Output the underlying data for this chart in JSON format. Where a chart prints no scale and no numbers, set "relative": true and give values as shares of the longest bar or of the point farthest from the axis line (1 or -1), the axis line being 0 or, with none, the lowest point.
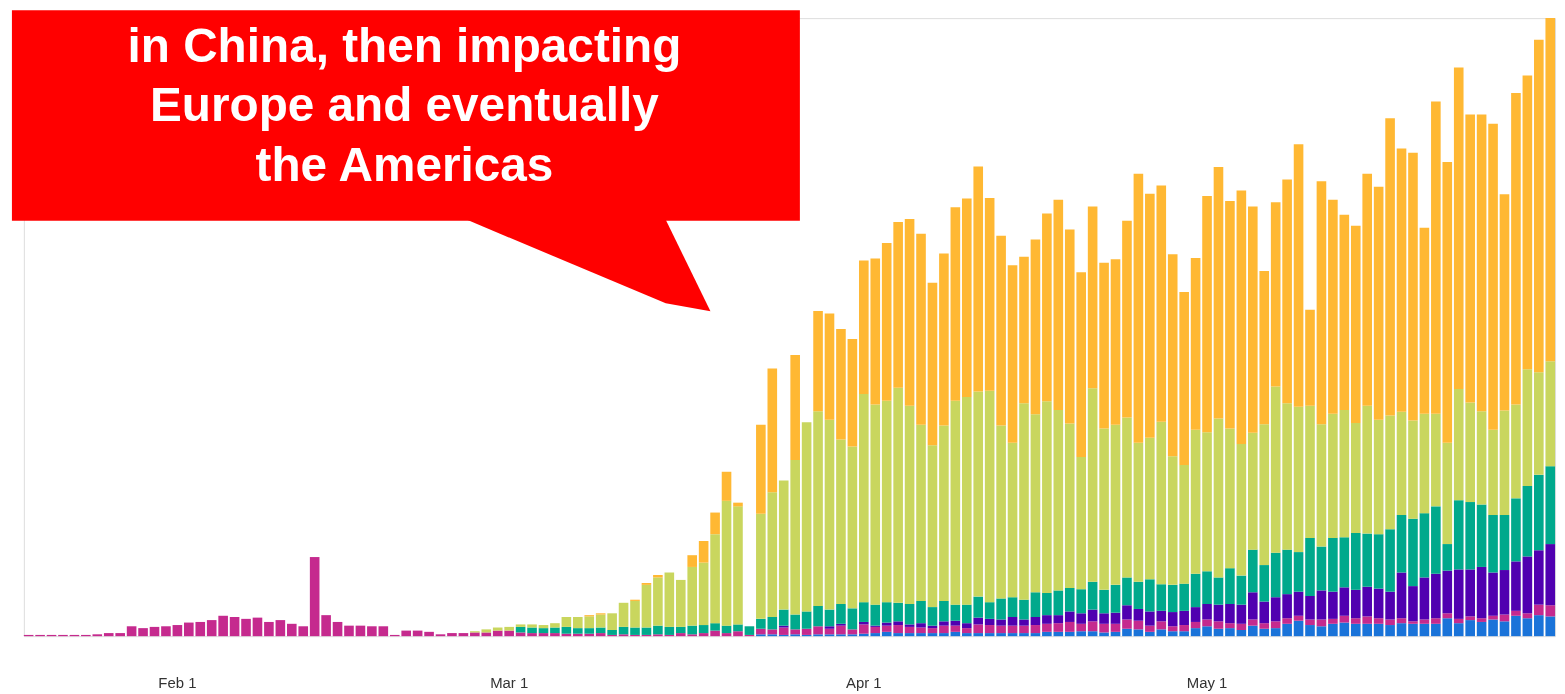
{
  "chart_data": {
    "type": "bar",
    "stacked": true,
    "relative": true,
    "categories": [
      null,
      null,
      null,
      null,
      null,
      null,
      null,
      null,
      null,
      null,
      null,
      null,
      null,
      "Feb 1",
      null,
      null,
      null,
      null,
      null,
      null,
      null,
      null,
      null,
      null,
      null,
      null,
      null,
      null,
      null,
      null,
      null,
      null,
      null,
      null,
      null,
      null,
      null,
      null,
      null,
      null,
      null,
      null,
      "Mar 1",
      null,
      null,
      null,
      null,
      null,
      null,
      null,
      null,
      null,
      null,
      null,
      null,
      null,
      null,
      null,
      null,
      null,
      null,
      null,
      null,
      null,
      null,
      null,
      null,
      null,
      null,
      null,
      null,
      null,
      null,
      "Apr 1",
      null,
      null,
      null,
      null,
      null,
      null,
      null,
      null,
      null,
      null,
      null,
      null,
      null,
      null,
      null,
      null,
      null,
      null,
      null,
      null,
      null,
      null,
      null,
      null,
      null,
      null,
      null,
      null,
      null,
      "May 1",
      null,
      null,
      null,
      null,
      null,
      null,
      null,
      null,
      null,
      null,
      null,
      null,
      null,
      null,
      null,
      null,
      null,
      null,
      null,
      null,
      null,
      null,
      null,
      null,
      null,
      null,
      null,
      null,
      null,
      null
    ],
    "series": [
      {
        "color": "#1a73d9",
        "values": [
          null,
          null,
          null,
          null,
          null,
          null,
          null,
          null,
          null,
          null,
          null,
          null,
          null,
          null,
          null,
          null,
          null,
          null,
          null,
          null,
          null,
          null,
          null,
          null,
          null,
          null,
          null,
          null,
          null,
          null,
          null,
          null,
          null,
          null,
          null,
          null,
          null,
          null,
          null,
          null,
          null,
          null,
          null,
          null,
          null,
          null,
          null,
          null,
          null,
          null,
          null,
          null,
          null,
          null,
          null,
          null,
          null,
          null,
          null,
          null,
          null,
          null,
          null,
          null,
          0.003,
          0.003,
          0.002,
          0.003,
          0.002,
          0.003,
          0.003,
          0.003,
          0.003,
          0.004,
          0.005,
          0.007,
          0.005,
          0.005,
          0.005,
          0.005,
          0.005,
          0.007,
          0.005,
          0.005,
          0.005,
          0.005,
          0.005,
          0.005,
          0.005,
          0.007,
          0.007,
          0.007,
          0.008,
          0.008,
          0.006,
          0.007,
          0.012,
          0.011,
          0.007,
          0.011,
          0.008,
          0.008,
          0.013,
          0.016,
          0.012,
          0.013,
          0.01,
          0.017,
          0.012,
          0.013,
          0.02,
          0.025,
          0.018,
          0.016,
          0.02,
          0.022,
          0.02,
          0.02,
          0.02,
          0.018,
          0.021,
          0.02,
          0.02,
          0.02,
          0.029,
          0.021,
          0.026,
          0.023,
          0.027,
          0.024,
          0.033,
          0.029,
          0.034,
          0.032
        ]
      },
      {
        "color": "#c52a8e",
        "values": [
          0.002,
          0.002,
          0.002,
          0.002,
          0.002,
          0.002,
          0.003,
          0.005,
          0.005,
          0.016,
          0.013,
          0.015,
          0.016,
          0.018,
          0.022,
          0.023,
          0.026,
          0.033,
          0.031,
          0.028,
          0.03,
          0.023,
          0.026,
          0.02,
          0.016,
          0.128,
          0.034,
          0.023,
          0.017,
          0.017,
          0.016,
          0.016,
          0.002,
          0.009,
          0.009,
          0.007,
          0.003,
          0.005,
          0.005,
          0.006,
          0.006,
          0.009,
          0.009,
          0.006,
          0.005,
          0.005,
          0.005,
          0.004,
          0.004,
          0.004,
          0.005,
          0.002,
          0.003,
          0.002,
          0.002,
          0.003,
          0.002,
          0.005,
          0.003,
          0.005,
          0.009,
          0.005,
          0.008,
          0.002,
          0.009,
          0.008,
          0.012,
          0.008,
          0.01,
          0.013,
          0.009,
          0.014,
          0.008,
          0.015,
          0.01,
          0.01,
          0.013,
          0.01,
          0.009,
          0.008,
          0.012,
          0.01,
          0.008,
          0.014,
          0.013,
          0.012,
          0.012,
          0.012,
          0.013,
          0.013,
          0.014,
          0.016,
          0.012,
          0.016,
          0.014,
          0.013,
          0.015,
          0.014,
          0.01,
          0.013,
          0.008,
          0.01,
          0.01,
          0.011,
          0.012,
          0.008,
          0.01,
          0.01,
          0.009,
          0.011,
          0.009,
          0.008,
          0.009,
          0.011,
          0.008,
          0.011,
          0.009,
          0.012,
          0.009,
          0.009,
          0.008,
          0.004,
          0.007,
          0.009,
          0.008,
          0.007,
          0.006,
          0.006,
          0.006,
          0.011,
          0.008,
          0.008,
          0.017,
          0.018
        ]
      },
      {
        "color": "#5000b0",
        "values": [
          null,
          null,
          null,
          null,
          null,
          null,
          null,
          null,
          null,
          null,
          null,
          null,
          null,
          null,
          null,
          null,
          null,
          null,
          null,
          null,
          null,
          null,
          null,
          null,
          null,
          null,
          null,
          null,
          null,
          null,
          null,
          null,
          null,
          null,
          null,
          null,
          null,
          null,
          null,
          null,
          null,
          null,
          null,
          null,
          null,
          null,
          null,
          null,
          null,
          null,
          null,
          null,
          null,
          null,
          null,
          null,
          null,
          null,
          null,
          null,
          null,
          null,
          null,
          null,
          null,
          null,
          0.003,
          null,
          null,
          null,
          0.004,
          0.003,
          null,
          0.004,
          0.002,
          0.005,
          0.006,
          0.004,
          0.007,
          0.004,
          0.007,
          0.008,
          0.008,
          0.011,
          0.01,
          0.01,
          0.014,
          0.01,
          0.013,
          0.014,
          0.013,
          0.017,
          0.017,
          0.019,
          0.017,
          0.018,
          0.023,
          0.019,
          0.023,
          0.017,
          0.023,
          0.023,
          0.024,
          0.025,
          0.027,
          0.031,
          0.031,
          0.044,
          0.035,
          0.039,
          0.039,
          0.039,
          0.038,
          0.047,
          0.044,
          0.046,
          0.046,
          0.048,
          0.048,
          0.045,
          0.074,
          0.057,
          0.068,
          0.072,
          0.069,
          0.08,
          0.076,
          0.083,
          0.07,
          0.072,
          0.08,
          0.092,
          0.088,
          0.099
        ]
      },
      {
        "color": "#00a98c",
        "values": [
          null,
          null,
          null,
          null,
          null,
          null,
          null,
          null,
          null,
          null,
          null,
          null,
          null,
          null,
          null,
          null,
          null,
          null,
          null,
          null,
          null,
          null,
          null,
          null,
          null,
          null,
          null,
          null,
          null,
          null,
          null,
          null,
          null,
          null,
          null,
          null,
          null,
          null,
          null,
          null,
          null,
          null,
          null,
          0.009,
          0.009,
          0.008,
          0.009,
          0.011,
          0.009,
          0.009,
          0.009,
          0.008,
          0.012,
          0.012,
          0.012,
          0.014,
          0.013,
          0.01,
          0.014,
          0.013,
          0.012,
          0.012,
          0.011,
          0.014,
          0.016,
          0.02,
          0.026,
          0.024,
          0.028,
          0.033,
          0.027,
          0.032,
          0.034,
          0.032,
          0.034,
          0.033,
          0.03,
          0.033,
          0.036,
          0.03,
          0.033,
          0.026,
          0.03,
          0.034,
          0.027,
          0.034,
          0.032,
          0.032,
          0.04,
          0.036,
          0.04,
          0.038,
          0.039,
          0.045,
          0.038,
          0.045,
          0.045,
          0.044,
          0.052,
          0.043,
          0.044,
          0.044,
          0.054,
          0.053,
          0.044,
          0.058,
          0.047,
          0.069,
          0.059,
          0.072,
          0.072,
          0.064,
          0.094,
          0.071,
          0.087,
          0.081,
          0.092,
          0.086,
          0.088,
          0.101,
          0.093,
          0.109,
          0.104,
          0.109,
          0.043,
          0.112,
          0.109,
          0.101,
          0.093,
          0.089,
          0.102,
          0.114,
          0.122,
          0.126
        ]
      },
      {
        "color": "#c9d65e",
        "values": [
          null,
          null,
          null,
          null,
          null,
          null,
          null,
          null,
          null,
          null,
          null,
          null,
          null,
          null,
          null,
          null,
          null,
          null,
          null,
          null,
          null,
          null,
          null,
          null,
          null,
          null,
          null,
          null,
          null,
          null,
          null,
          null,
          null,
          null,
          null,
          null,
          null,
          null,
          null,
          0.002,
          0.005,
          0.005,
          0.006,
          0.004,
          0.005,
          0.005,
          0.007,
          0.016,
          0.018,
          0.019,
          0.021,
          0.027,
          0.039,
          0.043,
          0.069,
          0.078,
          0.088,
          0.076,
          0.095,
          0.101,
          0.144,
          0.202,
          0.191,
          null,
          0.17,
          0.202,
          0.209,
          0.25,
          0.306,
          0.315,
          0.307,
          0.266,
          0.262,
          0.337,
          0.324,
          0.326,
          0.348,
          0.321,
          0.285,
          0.262,
          0.284,
          0.33,
          0.336,
          0.332,
          0.342,
          0.28,
          0.25,
          0.318,
          0.288,
          0.31,
          0.292,
          0.266,
          0.214,
          0.313,
          0.261,
          0.259,
          0.259,
          0.225,
          0.229,
          0.263,
          0.208,
          0.192,
          0.233,
          0.225,
          0.257,
          0.226,
          0.213,
          0.189,
          0.228,
          0.269,
          0.237,
          0.235,
          0.214,
          0.198,
          0.201,
          0.206,
          0.178,
          0.207,
          0.185,
          0.184,
          0.167,
          0.159,
          0.161,
          0.15,
          0.164,
          0.18,
          0.161,
          0.151,
          0.138,
          0.169,
          0.152,
          0.189,
          0.166,
          0.17
        ]
      },
      {
        "color": "#ffb833",
        "values": [
          null,
          null,
          null,
          null,
          null,
          null,
          null,
          null,
          null,
          null,
          null,
          null,
          null,
          null,
          null,
          null,
          null,
          null,
          null,
          null,
          null,
          null,
          null,
          null,
          null,
          null,
          null,
          null,
          null,
          null,
          null,
          null,
          null,
          null,
          null,
          null,
          null,
          null,
          null,
          null,
          null,
          null,
          null,
          null,
          null,
          null,
          null,
          null,
          null,
          0.002,
          0.002,
          null,
          null,
          0.002,
          0.003,
          0.004,
          null,
          null,
          0.019,
          0.035,
          0.035,
          0.047,
          0.006,
          null,
          0.144,
          0.2,
          null,
          0.17,
          null,
          0.162,
          0.172,
          0.179,
          0.174,
          0.216,
          0.236,
          0.255,
          0.268,
          0.302,
          0.309,
          0.263,
          0.278,
          0.313,
          0.321,
          0.364,
          0.312,
          0.307,
          0.287,
          0.237,
          0.283,
          0.304,
          0.34,
          0.314,
          0.299,
          0.294,
          0.268,
          0.268,
          0.318,
          0.435,
          0.395,
          0.382,
          0.327,
          0.28,
          0.278,
          0.382,
          0.407,
          0.368,
          0.41,
          0.366,
          0.248,
          0.298,
          0.362,
          0.425,
          0.155,
          0.393,
          0.346,
          0.316,
          0.319,
          0.375,
          0.377,
          0.481,
          0.426,
          0.433,
          0.301,
          0.505,
          0.454,
          0.52,
          0.466,
          0.48,
          0.495,
          0.35,
          0.504,
          0.475,
          0.538,
          0.555
        ]
      }
    ],
    "annotations": [
      "in China, then impacting\nEurope and eventually\nthe Americas"
    ]
  }
}
